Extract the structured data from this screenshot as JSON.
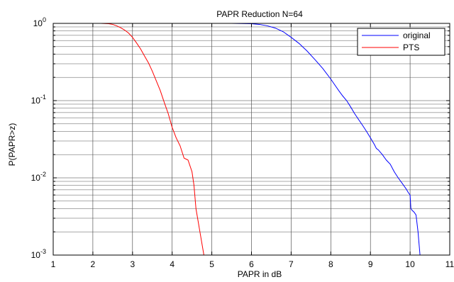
{
  "chart_data": {
    "type": "line",
    "title": "PAPR Reduction N=64",
    "xlabel": "PAPR in dB",
    "ylabel": "P(PAPR>z)",
    "xlim": [
      1,
      11
    ],
    "ylim": [
      0.001,
      1
    ],
    "yscale": "log",
    "grid": true,
    "legend_position": "top-right",
    "x_ticks": [
      "1",
      "2",
      "3",
      "4",
      "5",
      "6",
      "7",
      "8",
      "9",
      "10",
      "11"
    ],
    "y_ticks": [
      {
        "value": 0.001,
        "base": "10",
        "exp": "-3"
      },
      {
        "value": 0.01,
        "base": "10",
        "exp": "-2"
      },
      {
        "value": 0.1,
        "base": "10",
        "exp": "-1"
      },
      {
        "value": 1,
        "base": "10",
        "exp": "0"
      }
    ],
    "series": [
      {
        "name": "original",
        "color": "#0000ff",
        "x": [
          5.0,
          5.5,
          6.0,
          6.2,
          6.4,
          6.6,
          6.8,
          7.0,
          7.2,
          7.4,
          7.6,
          7.8,
          8.0,
          8.1,
          8.2,
          8.3,
          8.4,
          8.5,
          8.6,
          8.7,
          8.8,
          8.9,
          9.0,
          9.1,
          9.15,
          9.2,
          9.3,
          9.4,
          9.5,
          9.6,
          9.7,
          9.8,
          9.9,
          9.95,
          10.0,
          10.02,
          10.05,
          10.1,
          10.15,
          10.2,
          10.25
        ],
        "y": [
          1.0,
          1.0,
          0.99,
          0.97,
          0.93,
          0.87,
          0.78,
          0.66,
          0.55,
          0.44,
          0.34,
          0.26,
          0.19,
          0.16,
          0.135,
          0.115,
          0.1,
          0.083,
          0.068,
          0.057,
          0.048,
          0.04,
          0.033,
          0.027,
          0.024,
          0.023,
          0.02,
          0.017,
          0.015,
          0.012,
          0.01,
          0.0085,
          0.0072,
          0.0065,
          0.006,
          0.004,
          0.0038,
          0.0036,
          0.0033,
          0.002,
          0.001
        ]
      },
      {
        "name": "PTS",
        "color": "#ff0000",
        "x": [
          1.8,
          2.2,
          2.4,
          2.5,
          2.6,
          2.7,
          2.8,
          2.9,
          3.0,
          3.1,
          3.2,
          3.3,
          3.4,
          3.5,
          3.6,
          3.7,
          3.8,
          3.9,
          4.0,
          4.1,
          4.2,
          4.3,
          4.35,
          4.4,
          4.5,
          4.55,
          4.6,
          4.7,
          4.8
        ],
        "y": [
          1.0,
          1.0,
          0.99,
          0.97,
          0.93,
          0.88,
          0.82,
          0.75,
          0.66,
          0.56,
          0.47,
          0.38,
          0.31,
          0.24,
          0.18,
          0.135,
          0.095,
          0.068,
          0.045,
          0.033,
          0.026,
          0.018,
          0.0175,
          0.017,
          0.012,
          0.008,
          0.004,
          0.002,
          0.001
        ]
      }
    ]
  }
}
